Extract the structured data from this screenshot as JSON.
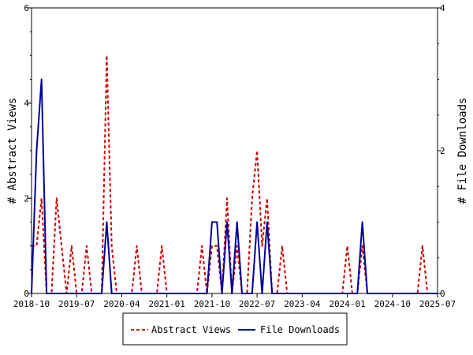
{
  "chart_data": {
    "type": "line",
    "x_ticks": [
      "2018-10",
      "2019-07",
      "2020-04",
      "2021-01",
      "2021-10",
      "2022-07",
      "2023-04",
      "2024-01",
      "2024-10",
      "2025-07"
    ],
    "xlim": [
      "2018-10",
      "2025-07"
    ],
    "left_axis": {
      "label": "# Abstract Views",
      "ylim": [
        0,
        6
      ],
      "ticks": [
        0,
        2,
        4,
        6
      ]
    },
    "right_axis": {
      "label": "# File Downloads",
      "ylim": [
        0,
        4
      ],
      "ticks": [
        0,
        2,
        4
      ]
    },
    "grid": false,
    "legend_position": "bottom",
    "series": [
      {
        "name": "Abstract Views",
        "axis": "left",
        "style": "dashed",
        "color": "#cc0000",
        "points": [
          [
            "2018-10",
            1
          ],
          [
            "2018-11",
            1
          ],
          [
            "2018-12",
            2
          ],
          [
            "2019-01",
            0
          ],
          [
            "2019-02",
            0
          ],
          [
            "2019-03",
            2
          ],
          [
            "2019-04",
            1
          ],
          [
            "2019-05",
            0
          ],
          [
            "2019-06",
            1
          ],
          [
            "2019-07",
            0
          ],
          [
            "2019-08",
            0
          ],
          [
            "2019-09",
            1
          ],
          [
            "2019-10",
            0
          ],
          [
            "2019-11",
            0
          ],
          [
            "2019-12",
            0
          ],
          [
            "2020-01",
            5
          ],
          [
            "2020-02",
            1
          ],
          [
            "2020-03",
            0
          ],
          [
            "2020-04",
            0
          ],
          [
            "2020-05",
            0
          ],
          [
            "2020-06",
            0
          ],
          [
            "2020-07",
            1
          ],
          [
            "2020-08",
            0
          ],
          [
            "2020-09",
            0
          ],
          [
            "2020-10",
            0
          ],
          [
            "2020-11",
            0
          ],
          [
            "2020-12",
            1
          ],
          [
            "2021-01",
            0
          ],
          [
            "2021-02",
            0
          ],
          [
            "2021-03",
            0
          ],
          [
            "2021-04",
            0
          ],
          [
            "2021-05",
            0
          ],
          [
            "2021-06",
            0
          ],
          [
            "2021-07",
            0
          ],
          [
            "2021-08",
            1
          ],
          [
            "2021-09",
            0
          ],
          [
            "2021-10",
            1
          ],
          [
            "2021-11",
            1
          ],
          [
            "2021-12",
            0
          ],
          [
            "2022-01",
            2
          ],
          [
            "2022-02",
            0
          ],
          [
            "2022-03",
            1
          ],
          [
            "2022-04",
            0
          ],
          [
            "2022-05",
            0
          ],
          [
            "2022-06",
            2
          ],
          [
            "2022-07",
            3
          ],
          [
            "2022-08",
            1
          ],
          [
            "2022-09",
            2
          ],
          [
            "2022-10",
            0
          ],
          [
            "2022-11",
            0
          ],
          [
            "2022-12",
            1
          ],
          [
            "2023-01",
            0
          ],
          [
            "2023-02",
            0
          ],
          [
            "2023-03",
            0
          ],
          [
            "2023-04",
            0
          ],
          [
            "2023-05",
            0
          ],
          [
            "2023-06",
            0
          ],
          [
            "2023-07",
            0
          ],
          [
            "2023-08",
            0
          ],
          [
            "2023-09",
            0
          ],
          [
            "2023-10",
            0
          ],
          [
            "2023-11",
            0
          ],
          [
            "2023-12",
            0
          ],
          [
            "2024-01",
            1
          ],
          [
            "2024-02",
            0
          ],
          [
            "2024-03",
            0
          ],
          [
            "2024-04",
            1
          ],
          [
            "2024-05",
            0
          ],
          [
            "2024-06",
            0
          ],
          [
            "2024-07",
            0
          ],
          [
            "2024-08",
            0
          ],
          [
            "2024-09",
            0
          ],
          [
            "2024-10",
            0
          ],
          [
            "2024-11",
            0
          ],
          [
            "2024-12",
            0
          ],
          [
            "2025-01",
            0
          ],
          [
            "2025-02",
            0
          ],
          [
            "2025-03",
            0
          ],
          [
            "2025-04",
            1
          ],
          [
            "2025-05",
            0
          ],
          [
            "2025-06",
            0
          ],
          [
            "2025-07",
            0
          ]
        ]
      },
      {
        "name": "File Downloads",
        "axis": "right",
        "style": "solid",
        "color": "#000099",
        "points": [
          [
            "2018-10",
            0
          ],
          [
            "2018-11",
            2
          ],
          [
            "2018-12",
            3
          ],
          [
            "2019-01",
            0
          ],
          [
            "2019-02",
            0
          ],
          [
            "2019-03",
            0
          ],
          [
            "2019-04",
            0
          ],
          [
            "2019-05",
            0
          ],
          [
            "2019-06",
            0
          ],
          [
            "2019-07",
            0
          ],
          [
            "2019-08",
            0
          ],
          [
            "2019-09",
            0
          ],
          [
            "2019-10",
            0
          ],
          [
            "2019-11",
            0
          ],
          [
            "2019-12",
            0
          ],
          [
            "2020-01",
            1
          ],
          [
            "2020-02",
            0
          ],
          [
            "2020-03",
            0
          ],
          [
            "2020-04",
            0
          ],
          [
            "2020-05",
            0
          ],
          [
            "2020-06",
            0
          ],
          [
            "2020-07",
            0
          ],
          [
            "2020-08",
            0
          ],
          [
            "2020-09",
            0
          ],
          [
            "2020-10",
            0
          ],
          [
            "2020-11",
            0
          ],
          [
            "2020-12",
            0
          ],
          [
            "2021-01",
            0
          ],
          [
            "2021-02",
            0
          ],
          [
            "2021-03",
            0
          ],
          [
            "2021-04",
            0
          ],
          [
            "2021-05",
            0
          ],
          [
            "2021-06",
            0
          ],
          [
            "2021-07",
            0
          ],
          [
            "2021-08",
            0
          ],
          [
            "2021-09",
            0
          ],
          [
            "2021-10",
            1
          ],
          [
            "2021-11",
            1
          ],
          [
            "2021-12",
            0
          ],
          [
            "2022-01",
            1
          ],
          [
            "2022-02",
            0
          ],
          [
            "2022-03",
            1
          ],
          [
            "2022-04",
            0
          ],
          [
            "2022-05",
            0
          ],
          [
            "2022-06",
            0
          ],
          [
            "2022-07",
            1
          ],
          [
            "2022-08",
            0
          ],
          [
            "2022-09",
            1
          ],
          [
            "2022-10",
            0
          ],
          [
            "2022-11",
            0
          ],
          [
            "2022-12",
            0
          ],
          [
            "2023-01",
            0
          ],
          [
            "2023-02",
            0
          ],
          [
            "2023-03",
            0
          ],
          [
            "2023-04",
            0
          ],
          [
            "2023-05",
            0
          ],
          [
            "2023-06",
            0
          ],
          [
            "2023-07",
            0
          ],
          [
            "2023-08",
            0
          ],
          [
            "2023-09",
            0
          ],
          [
            "2023-10",
            0
          ],
          [
            "2023-11",
            0
          ],
          [
            "2023-12",
            0
          ],
          [
            "2024-01",
            0
          ],
          [
            "2024-02",
            0
          ],
          [
            "2024-03",
            0
          ],
          [
            "2024-04",
            1
          ],
          [
            "2024-05",
            0
          ],
          [
            "2024-06",
            0
          ],
          [
            "2024-07",
            0
          ],
          [
            "2024-08",
            0
          ],
          [
            "2024-09",
            0
          ],
          [
            "2024-10",
            0
          ],
          [
            "2024-11",
            0
          ],
          [
            "2024-12",
            0
          ],
          [
            "2025-01",
            0
          ],
          [
            "2025-02",
            0
          ],
          [
            "2025-03",
            0
          ],
          [
            "2025-04",
            0
          ],
          [
            "2025-05",
            0
          ],
          [
            "2025-06",
            0
          ],
          [
            "2025-07",
            0
          ]
        ]
      }
    ]
  }
}
